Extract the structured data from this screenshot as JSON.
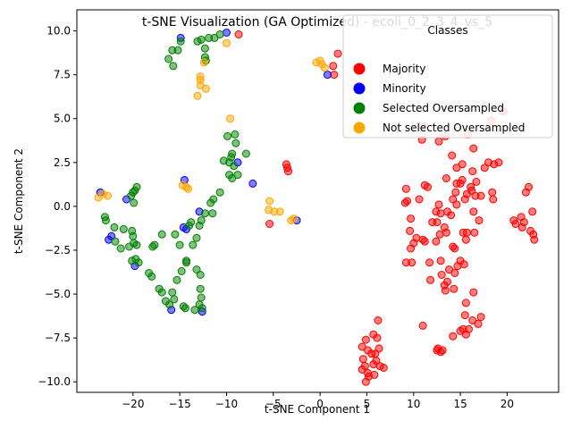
{
  "chart_data": {
    "type": "scatter",
    "title": "t-SNE Visualization (GA Optimized) - ecoli_0_2_3_4_vs_5",
    "xlabel": "t-SNE Component 1",
    "ylabel": "t-SNE Component 2",
    "xlim": [
      -26,
      25.5
    ],
    "ylim": [
      -10.6,
      11.2
    ],
    "xticks": [
      -20,
      -15,
      -10,
      -5,
      0,
      5,
      10,
      15,
      20
    ],
    "yticks": [
      -10.0,
      -7.5,
      -5.0,
      -2.5,
      0.0,
      2.5,
      5.0,
      7.5,
      10.0
    ],
    "xtick_labels": [
      "−20",
      "−15",
      "−10",
      "−5",
      "0",
      "5",
      "10",
      "15",
      "20"
    ],
    "ytick_labels": [
      "−10.0",
      "−7.5",
      "−5.0",
      "−2.5",
      "0.0",
      "2.5",
      "5.0",
      "7.5",
      "10.0"
    ],
    "grid": false,
    "legend": {
      "title": "Classes",
      "placement": "upper right"
    },
    "series": [
      {
        "name": "Majority",
        "color": "#ff0000",
        "points": [
          [
            -8.7,
            9.8
          ],
          [
            1.9,
            8.7
          ],
          [
            1.4,
            8.0
          ],
          [
            1.5,
            7.5
          ],
          [
            -3.6,
            2.4
          ],
          [
            -3.5,
            2.2
          ],
          [
            -3.4,
            2.0
          ],
          [
            -5.4,
            -1.0
          ],
          [
            9.2,
            1.0
          ],
          [
            9.1,
            0.2
          ],
          [
            9.3,
            0.3
          ],
          [
            9.7,
            -0.7
          ],
          [
            10.6,
            0.4
          ],
          [
            11.2,
            1.2
          ],
          [
            11.5,
            1.1
          ],
          [
            12.0,
            -0.9
          ],
          [
            12.4,
            -0.3
          ],
          [
            12.7,
            0.1
          ],
          [
            12.9,
            -0.4
          ],
          [
            13.3,
            -1.2
          ],
          [
            13.6,
            -0.3
          ],
          [
            14.0,
            -0.5
          ],
          [
            14.2,
            0.4
          ],
          [
            14.5,
            0.8
          ],
          [
            14.6,
            0.1
          ],
          [
            15.0,
            1.3
          ],
          [
            15.2,
            1.5
          ],
          [
            15.5,
            0.4
          ],
          [
            15.7,
            0.7
          ],
          [
            16.2,
            0.9
          ],
          [
            16.6,
            0.6
          ],
          [
            17.0,
            -0.8
          ],
          [
            17.2,
            0.6
          ],
          [
            16.4,
            -0.3
          ],
          [
            18.4,
            0.8
          ],
          [
            18.5,
            0.4
          ],
          [
            10.9,
            3.8
          ],
          [
            12.7,
            3.7
          ],
          [
            13.4,
            4.0
          ],
          [
            14.1,
            2.9
          ],
          [
            13.5,
            1.6
          ],
          [
            14.6,
            1.3
          ],
          [
            14.6,
            2.2
          ],
          [
            15.2,
            2.4
          ],
          [
            16.3,
            2.0
          ],
          [
            16.1,
            1.1
          ],
          [
            16.7,
            1.4
          ],
          [
            17.6,
            2.2
          ],
          [
            18.0,
            2.5
          ],
          [
            18.6,
            2.4
          ],
          [
            19.1,
            2.5
          ],
          [
            15.8,
            4.1
          ],
          [
            16.4,
            3.3
          ],
          [
            19.6,
            5.4
          ],
          [
            18.3,
            4.9
          ],
          [
            9.6,
            -1.4
          ],
          [
            9.7,
            -2.4
          ],
          [
            10.0,
            -2.1
          ],
          [
            10.3,
            -1.8
          ],
          [
            11.0,
            -1.9
          ],
          [
            11.7,
            -3.2
          ],
          [
            11.2,
            -2.0
          ],
          [
            12.4,
            -2.0
          ],
          [
            12.8,
            -1.6
          ],
          [
            12.5,
            -0.9
          ],
          [
            13.5,
            -1.5
          ],
          [
            14.2,
            -2.3
          ],
          [
            14.4,
            -2.4
          ],
          [
            15.3,
            -1.5
          ],
          [
            15.6,
            -1.9
          ],
          [
            15.7,
            -1.5
          ],
          [
            16.5,
            -1.5
          ],
          [
            9.2,
            -3.2
          ],
          [
            9.8,
            -3.2
          ],
          [
            11.8,
            -4.2
          ],
          [
            12.9,
            -3.1
          ],
          [
            13.0,
            -3.9
          ],
          [
            13.3,
            -4.5
          ],
          [
            13.4,
            -4.8
          ],
          [
            13.6,
            -4.3
          ],
          [
            13.8,
            -3.6
          ],
          [
            14.4,
            -3.8
          ],
          [
            14.3,
            -4.7
          ],
          [
            14.7,
            -3.4
          ],
          [
            15.0,
            -3.1
          ],
          [
            15.4,
            -3.3
          ],
          [
            15.6,
            -5.5
          ],
          [
            16.4,
            -4.9
          ],
          [
            15.5,
            -6.2
          ],
          [
            16.3,
            -6.5
          ],
          [
            17.2,
            -6.3
          ],
          [
            16.9,
            -6.7
          ],
          [
            15.0,
            -7.1
          ],
          [
            15.3,
            -7.0
          ],
          [
            15.6,
            -7.3
          ],
          [
            15.9,
            -7.0
          ],
          [
            14.2,
            -7.4
          ],
          [
            11.0,
            -6.8
          ],
          [
            12.5,
            -8.2
          ],
          [
            12.9,
            -8.3
          ],
          [
            12.6,
            -8.1
          ],
          [
            13.1,
            -8.2
          ],
          [
            6.2,
            -6.5
          ],
          [
            5.7,
            -7.3
          ],
          [
            6.1,
            -7.5
          ],
          [
            4.9,
            -7.6
          ],
          [
            4.5,
            -8.0
          ],
          [
            5.1,
            -8.2
          ],
          [
            5.5,
            -8.4
          ],
          [
            5.9,
            -8.4
          ],
          [
            6.3,
            -8.1
          ],
          [
            4.6,
            -8.7
          ],
          [
            4.8,
            -9.1
          ],
          [
            5.7,
            -9.0
          ],
          [
            6.0,
            -8.8
          ],
          [
            6.4,
            -9.1
          ],
          [
            6.8,
            -9.2
          ],
          [
            4.5,
            -9.3
          ],
          [
            5.1,
            -9.5
          ],
          [
            5.8,
            -9.6
          ],
          [
            5.2,
            -9.7
          ],
          [
            4.9,
            -10.0
          ],
          [
            20.7,
            -0.8
          ],
          [
            21.5,
            -0.6
          ],
          [
            21.8,
            -0.9
          ],
          [
            22.5,
            -1.4
          ],
          [
            22.7,
            -0.3
          ],
          [
            22.8,
            -1.6
          ],
          [
            22.3,
            1.1
          ],
          [
            22.0,
            0.8
          ],
          [
            21.6,
            -1.2
          ],
          [
            20.9,
            -1.0
          ],
          [
            22.9,
            -1.9
          ],
          [
            10.9,
            4.6
          ]
        ]
      },
      {
        "name": "Minority",
        "color": "#0000ff",
        "points": [
          [
            -14.9,
            9.6
          ],
          [
            -10.0,
            9.9
          ],
          [
            0.8,
            7.5
          ],
          [
            -8.8,
            2.5
          ],
          [
            -7.2,
            1.3
          ],
          [
            -2.5,
            -0.8
          ],
          [
            -14.5,
            1.5
          ],
          [
            -12.9,
            -0.3
          ],
          [
            -14.6,
            -1.2
          ],
          [
            -14.3,
            -1.3
          ],
          [
            -23.5,
            0.8
          ],
          [
            -20.7,
            0.4
          ],
          [
            -22.3,
            -1.7
          ],
          [
            -22.6,
            -1.9
          ],
          [
            -19.8,
            -3.4
          ],
          [
            -15.9,
            -5.9
          ],
          [
            -12.6,
            -6.0
          ]
        ]
      },
      {
        "name": "Selected Oversampled",
        "color": "#008000",
        "points": [
          [
            -15.8,
            8.9
          ],
          [
            -15.2,
            8.9
          ],
          [
            -16.2,
            8.4
          ],
          [
            -15.7,
            8.0
          ],
          [
            -14.9,
            9.4
          ],
          [
            -13.1,
            9.4
          ],
          [
            -12.7,
            9.5
          ],
          [
            -12.3,
            9.0
          ],
          [
            -11.9,
            9.6
          ],
          [
            -11.3,
            9.6
          ],
          [
            -10.7,
            9.8
          ],
          [
            -12.3,
            8.5
          ],
          [
            -12.2,
            8.3
          ],
          [
            -9.9,
            4.0
          ],
          [
            -9.1,
            4.1
          ],
          [
            -9.0,
            3.6
          ],
          [
            -10.3,
            2.6
          ],
          [
            -9.4,
            3.0
          ],
          [
            -7.9,
            3.0
          ],
          [
            -9.5,
            2.8
          ],
          [
            -9.7,
            2.5
          ],
          [
            -9.2,
            2.3
          ],
          [
            -8.8,
            1.8
          ],
          [
            -9.7,
            1.8
          ],
          [
            -9.4,
            1.6
          ],
          [
            -10.7,
            0.8
          ],
          [
            -11.4,
            0.4
          ],
          [
            -11.7,
            0.2
          ],
          [
            -11.5,
            -0.4
          ],
          [
            -12.7,
            -0.8
          ],
          [
            -12.9,
            -1.1
          ],
          [
            -13.8,
            -0.9
          ],
          [
            -12.3,
            -0.4
          ],
          [
            -13.2,
            -1.8
          ],
          [
            -14.0,
            -1.1
          ],
          [
            -15.5,
            -1.6
          ],
          [
            -15.0,
            -2.2
          ],
          [
            -13.6,
            -2.2
          ],
          [
            -14.3,
            -3.1
          ],
          [
            -16.9,
            -1.6
          ],
          [
            -17.7,
            -2.2
          ],
          [
            -17.9,
            -2.3
          ],
          [
            -21.9,
            -2.0
          ],
          [
            -21.3,
            -2.4
          ],
          [
            -21.0,
            -1.3
          ],
          [
            -20.4,
            -2.3
          ],
          [
            -20.1,
            -1.4
          ],
          [
            -20.0,
            -1.7
          ],
          [
            -19.9,
            -2.1
          ],
          [
            -19.6,
            -2.2
          ],
          [
            -20.1,
            -3.1
          ],
          [
            -19.7,
            -3.0
          ],
          [
            -19.4,
            -3.2
          ],
          [
            -22.9,
            -0.8
          ],
          [
            -23.0,
            -0.6
          ],
          [
            -22.0,
            -1.2
          ],
          [
            -20.2,
            0.6
          ],
          [
            -20.0,
            0.8
          ],
          [
            -19.8,
            0.9
          ],
          [
            -19.6,
            1.1
          ],
          [
            -19.9,
            0.2
          ],
          [
            -18.3,
            -3.8
          ],
          [
            -18.0,
            -4.0
          ],
          [
            -17.2,
            -4.7
          ],
          [
            -16.9,
            -4.9
          ],
          [
            -16.5,
            -5.4
          ],
          [
            -16.1,
            -5.6
          ],
          [
            -15.8,
            -4.9
          ],
          [
            -15.6,
            -5.3
          ],
          [
            -15.3,
            -4.2
          ],
          [
            -14.8,
            -3.7
          ],
          [
            -14.3,
            -3.2
          ],
          [
            -14.6,
            -5.7
          ],
          [
            -14.4,
            -5.8
          ],
          [
            -13.4,
            -5.9
          ],
          [
            -12.9,
            -5.6
          ],
          [
            -12.6,
            -5.8
          ],
          [
            -12.8,
            -4.7
          ],
          [
            -12.8,
            -3.9
          ],
          [
            -13.2,
            -3.6
          ],
          [
            -12.7,
            -5.2
          ]
        ]
      },
      {
        "name": "Not selected Oversampled",
        "color": "#ffa500",
        "points": [
          [
            -10.0,
            9.3
          ],
          [
            -12.4,
            8.2
          ],
          [
            -12.8,
            7.4
          ],
          [
            -12.8,
            7.2
          ],
          [
            -12.8,
            6.9
          ],
          [
            -12.2,
            6.7
          ],
          [
            -13.1,
            6.3
          ],
          [
            -9.6,
            5.0
          ],
          [
            0.0,
            8.3
          ],
          [
            -0.4,
            8.2
          ],
          [
            0.2,
            8.1
          ],
          [
            0.5,
            7.9
          ],
          [
            -14.7,
            1.2
          ],
          [
            -14.3,
            1.1
          ],
          [
            -14.1,
            1.0
          ],
          [
            -23.7,
            0.5
          ],
          [
            -23.2,
            0.7
          ],
          [
            -22.7,
            0.6
          ],
          [
            -5.4,
            0.3
          ],
          [
            -5.5,
            -0.2
          ],
          [
            -4.9,
            -0.3
          ],
          [
            -4.3,
            -0.3
          ],
          [
            -3.1,
            -0.8
          ],
          [
            -2.8,
            -0.7
          ]
        ]
      }
    ]
  }
}
